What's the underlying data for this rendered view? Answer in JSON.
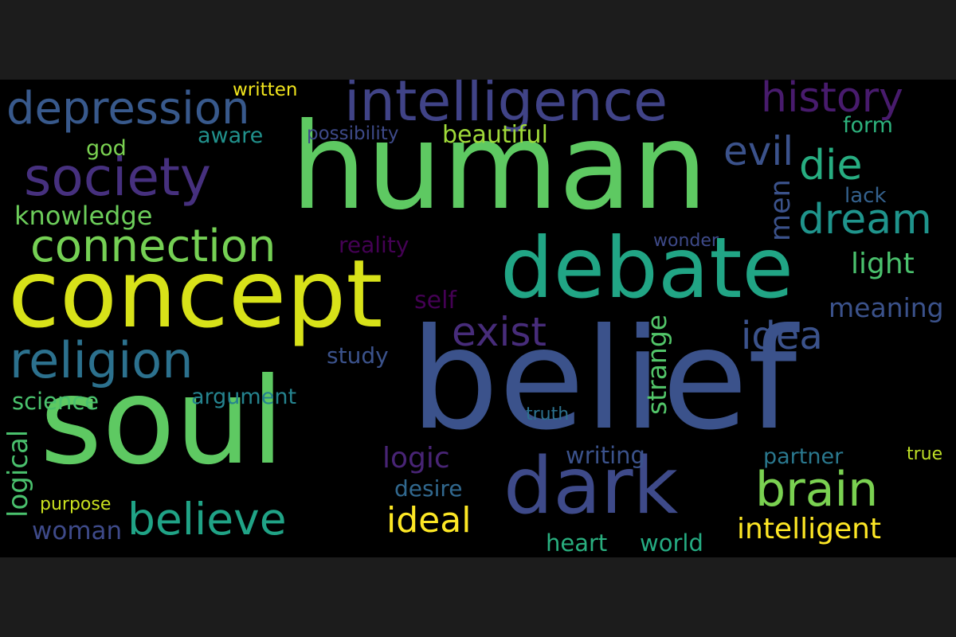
{
  "cloud": {
    "background": "#000000",
    "frame": "#1c1c1c",
    "words": [
      {
        "text": "human",
        "color": "#5ec962"
      },
      {
        "text": "belief",
        "color": "#3b528b"
      },
      {
        "text": "soul",
        "color": "#5ec962"
      },
      {
        "text": "concept",
        "color": "#d8e219"
      },
      {
        "text": "debate",
        "color": "#21a585"
      },
      {
        "text": "dark",
        "color": "#3e4a89"
      },
      {
        "text": "intelligence",
        "color": "#404387"
      },
      {
        "text": "society",
        "color": "#46307e"
      },
      {
        "text": "depression",
        "color": "#38598c"
      },
      {
        "text": "religion",
        "color": "#2c718e"
      },
      {
        "text": "connection",
        "color": "#75d054"
      },
      {
        "text": "believe",
        "color": "#20a386"
      },
      {
        "text": "brain",
        "color": "#7ad151"
      },
      {
        "text": "history",
        "color": "#481b6d"
      },
      {
        "text": "evil",
        "color": "#3b528b"
      },
      {
        "text": "die",
        "color": "#27ad81"
      },
      {
        "text": "dream",
        "color": "#1f948c"
      },
      {
        "text": "exist",
        "color": "#472c7a"
      },
      {
        "text": "idea",
        "color": "#3b528b"
      },
      {
        "text": "ideal",
        "color": "#fde725"
      },
      {
        "text": "intelligent",
        "color": "#fde725"
      },
      {
        "text": "knowledge",
        "color": "#6ccd5a"
      },
      {
        "text": "logic",
        "color": "#482475"
      },
      {
        "text": "light",
        "color": "#4ac16d"
      },
      {
        "text": "meaning",
        "color": "#3b528b"
      },
      {
        "text": "strange",
        "color": "#52c569"
      },
      {
        "text": "logical",
        "color": "#4ac16d"
      },
      {
        "text": "woman",
        "color": "#3e4a89"
      },
      {
        "text": "science",
        "color": "#4ac16d"
      },
      {
        "text": "argument",
        "color": "#25838e"
      },
      {
        "text": "study",
        "color": "#3b528b"
      },
      {
        "text": "reality",
        "color": "#440154"
      },
      {
        "text": "self",
        "color": "#440154"
      },
      {
        "text": "writing",
        "color": "#3b528b"
      },
      {
        "text": "partner",
        "color": "#2a788e"
      },
      {
        "text": "desire",
        "color": "#31688e"
      },
      {
        "text": "heart",
        "color": "#29af7f"
      },
      {
        "text": "world",
        "color": "#25ab82"
      },
      {
        "text": "beautiful",
        "color": "#a0da39"
      },
      {
        "text": "aware",
        "color": "#21918c"
      },
      {
        "text": "possibility",
        "color": "#3e4a89"
      },
      {
        "text": "god",
        "color": "#7ad151"
      },
      {
        "text": "written",
        "color": "#f1e51d"
      },
      {
        "text": "form",
        "color": "#2db27d"
      },
      {
        "text": "lack",
        "color": "#34618d"
      },
      {
        "text": "men",
        "color": "#3b528b"
      },
      {
        "text": "wonder",
        "color": "#3e4a89"
      },
      {
        "text": "truth",
        "color": "#2c718e"
      },
      {
        "text": "true",
        "color": "#bddf26"
      },
      {
        "text": "purpose",
        "color": "#cae11f"
      }
    ]
  }
}
